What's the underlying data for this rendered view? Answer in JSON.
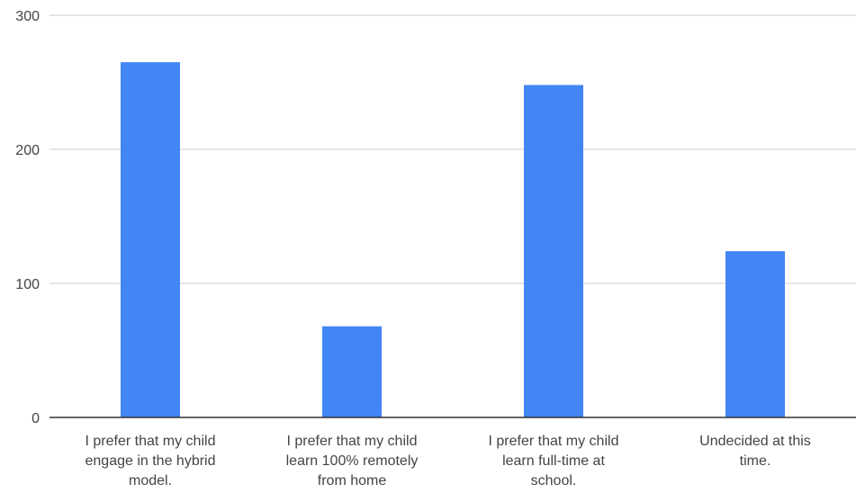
{
  "chart_data": {
    "type": "bar",
    "title": "",
    "xlabel": "",
    "ylabel": "",
    "categories": [
      "I prefer that my child engage in the hybrid model.",
      "I prefer that my child learn 100% remotely from home",
      "I prefer that my child learn full-time at school.",
      "Undecided at this time."
    ],
    "category_lines": [
      [
        "I prefer that my child",
        "engage in the hybrid",
        "model."
      ],
      [
        "I prefer that my child",
        "learn 100% remotely",
        "from home"
      ],
      [
        "I prefer that my child",
        "learn full-time at",
        "school."
      ],
      [
        "Undecided at this",
        "time."
      ]
    ],
    "values": [
      265,
      68,
      248,
      124
    ],
    "ylim": [
      0,
      300
    ],
    "yticks": [
      0,
      100,
      200,
      300
    ],
    "grid": true,
    "legend": "none",
    "colors": {
      "bar": "#4285f4",
      "grid": "#cccccc",
      "axis": "#333333",
      "text": "#444444"
    }
  }
}
